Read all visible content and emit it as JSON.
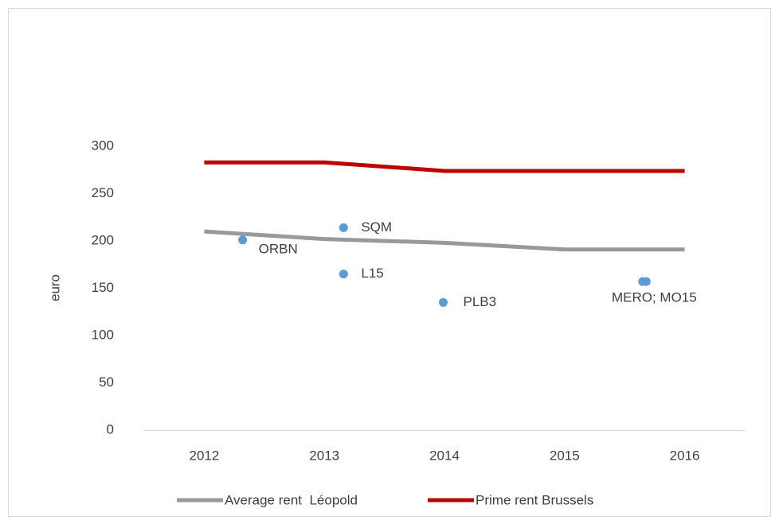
{
  "chart_data": {
    "type": "line",
    "ylabel": "euro",
    "xlim": [
      2011.5,
      2016.5
    ],
    "xticks": [
      2012,
      2013,
      2014,
      2015,
      2016
    ],
    "ylim": [
      0,
      300
    ],
    "yticks": [
      0,
      50,
      100,
      150,
      200,
      250,
      300
    ],
    "legend": "bottom",
    "series": [
      {
        "name": "Average rent  Léopold",
        "color": "#999999",
        "x": [
          2012,
          2013,
          2014,
          2015,
          2016
        ],
        "values": [
          210,
          202,
          198,
          191,
          191
        ]
      },
      {
        "name": "Prime rent Brussels",
        "color": "#c00000",
        "x": [
          2012,
          2013,
          2014,
          2015,
          2016
        ],
        "values": [
          283,
          283,
          274,
          274,
          274
        ]
      }
    ],
    "points": {
      "type": "scatter",
      "color": "#5b9bd5",
      "x": [
        2012.32,
        2013.16,
        2013.16,
        2013.99,
        2015.65,
        2015.68
      ],
      "values": [
        201,
        214,
        165,
        135,
        157,
        157
      ],
      "labels": [
        "ORBN",
        "SQM",
        "L15",
        "PLB3",
        null,
        "MERO; MO15"
      ]
    }
  }
}
